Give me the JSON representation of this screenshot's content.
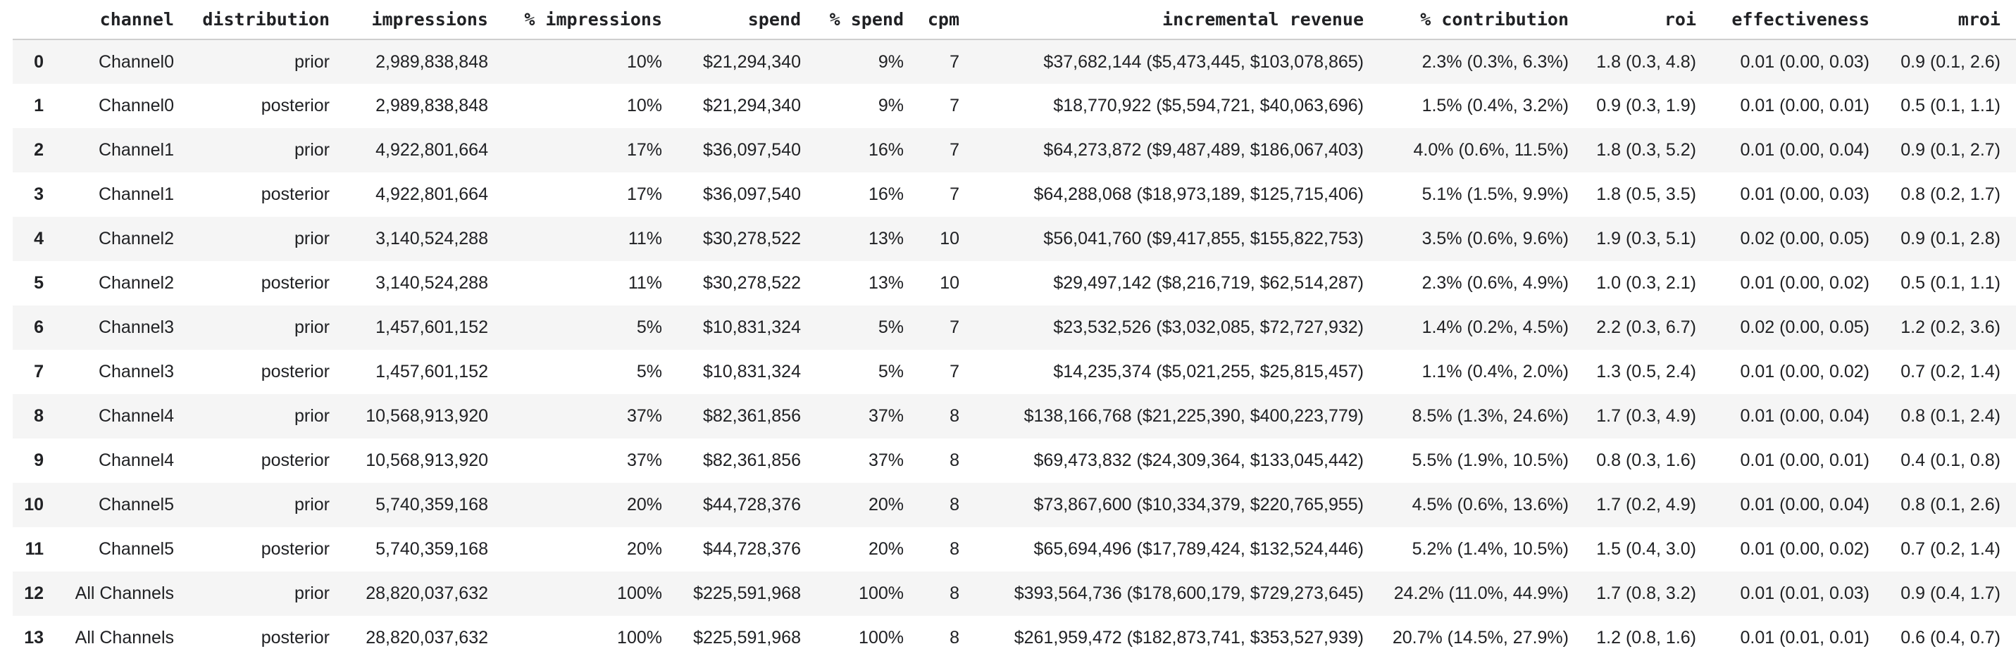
{
  "style": {
    "text_color": "#202124",
    "stripe_color": "#f5f5f5",
    "header_border_color": "#cfcfcf",
    "background_color": "#ffffff"
  },
  "table": {
    "columns": [
      "",
      "channel",
      "distribution",
      "impressions",
      "% impressions",
      "spend",
      "% spend",
      "cpm",
      "incremental revenue",
      "% contribution",
      "roi",
      "effectiveness",
      "mroi"
    ],
    "column_slugs": [
      "index",
      "channel",
      "distribution",
      "impressions",
      "pct-impressions",
      "spend",
      "pct-spend",
      "cpm",
      "incremental-revenue",
      "pct-contribution",
      "roi",
      "effectiveness",
      "mroi"
    ],
    "rows": [
      [
        "0",
        "Channel0",
        "prior",
        "2,989,838,848",
        "10%",
        "$21,294,340",
        "9%",
        "7",
        "$37,682,144 ($5,473,445, $103,078,865)",
        "2.3% (0.3%, 6.3%)",
        "1.8 (0.3, 4.8)",
        "0.01 (0.00, 0.03)",
        "0.9 (0.1, 2.6)"
      ],
      [
        "1",
        "Channel0",
        "posterior",
        "2,989,838,848",
        "10%",
        "$21,294,340",
        "9%",
        "7",
        "$18,770,922 ($5,594,721, $40,063,696)",
        "1.5% (0.4%, 3.2%)",
        "0.9 (0.3, 1.9)",
        "0.01 (0.00, 0.01)",
        "0.5 (0.1, 1.1)"
      ],
      [
        "2",
        "Channel1",
        "prior",
        "4,922,801,664",
        "17%",
        "$36,097,540",
        "16%",
        "7",
        "$64,273,872 ($9,487,489, $186,067,403)",
        "4.0% (0.6%, 11.5%)",
        "1.8 (0.3, 5.2)",
        "0.01 (0.00, 0.04)",
        "0.9 (0.1, 2.7)"
      ],
      [
        "3",
        "Channel1",
        "posterior",
        "4,922,801,664",
        "17%",
        "$36,097,540",
        "16%",
        "7",
        "$64,288,068 ($18,973,189, $125,715,406)",
        "5.1% (1.5%, 9.9%)",
        "1.8 (0.5, 3.5)",
        "0.01 (0.00, 0.03)",
        "0.8 (0.2, 1.7)"
      ],
      [
        "4",
        "Channel2",
        "prior",
        "3,140,524,288",
        "11%",
        "$30,278,522",
        "13%",
        "10",
        "$56,041,760 ($9,417,855, $155,822,753)",
        "3.5% (0.6%, 9.6%)",
        "1.9 (0.3, 5.1)",
        "0.02 (0.00, 0.05)",
        "0.9 (0.1, 2.8)"
      ],
      [
        "5",
        "Channel2",
        "posterior",
        "3,140,524,288",
        "11%",
        "$30,278,522",
        "13%",
        "10",
        "$29,497,142 ($8,216,719, $62,514,287)",
        "2.3% (0.6%, 4.9%)",
        "1.0 (0.3, 2.1)",
        "0.01 (0.00, 0.02)",
        "0.5 (0.1, 1.1)"
      ],
      [
        "6",
        "Channel3",
        "prior",
        "1,457,601,152",
        "5%",
        "$10,831,324",
        "5%",
        "7",
        "$23,532,526 ($3,032,085, $72,727,932)",
        "1.4% (0.2%, 4.5%)",
        "2.2 (0.3, 6.7)",
        "0.02 (0.00, 0.05)",
        "1.2 (0.2, 3.6)"
      ],
      [
        "7",
        "Channel3",
        "posterior",
        "1,457,601,152",
        "5%",
        "$10,831,324",
        "5%",
        "7",
        "$14,235,374 ($5,021,255, $25,815,457)",
        "1.1% (0.4%, 2.0%)",
        "1.3 (0.5, 2.4)",
        "0.01 (0.00, 0.02)",
        "0.7 (0.2, 1.4)"
      ],
      [
        "8",
        "Channel4",
        "prior",
        "10,568,913,920",
        "37%",
        "$82,361,856",
        "37%",
        "8",
        "$138,166,768 ($21,225,390, $400,223,779)",
        "8.5% (1.3%, 24.6%)",
        "1.7 (0.3, 4.9)",
        "0.01 (0.00, 0.04)",
        "0.8 (0.1, 2.4)"
      ],
      [
        "9",
        "Channel4",
        "posterior",
        "10,568,913,920",
        "37%",
        "$82,361,856",
        "37%",
        "8",
        "$69,473,832 ($24,309,364, $133,045,442)",
        "5.5% (1.9%, 10.5%)",
        "0.8 (0.3, 1.6)",
        "0.01 (0.00, 0.01)",
        "0.4 (0.1, 0.8)"
      ],
      [
        "10",
        "Channel5",
        "prior",
        "5,740,359,168",
        "20%",
        "$44,728,376",
        "20%",
        "8",
        "$73,867,600 ($10,334,379, $220,765,955)",
        "4.5% (0.6%, 13.6%)",
        "1.7 (0.2, 4.9)",
        "0.01 (0.00, 0.04)",
        "0.8 (0.1, 2.6)"
      ],
      [
        "11",
        "Channel5",
        "posterior",
        "5,740,359,168",
        "20%",
        "$44,728,376",
        "20%",
        "8",
        "$65,694,496 ($17,789,424, $132,524,446)",
        "5.2% (1.4%, 10.5%)",
        "1.5 (0.4, 3.0)",
        "0.01 (0.00, 0.02)",
        "0.7 (0.2, 1.4)"
      ],
      [
        "12",
        "All Channels",
        "prior",
        "28,820,037,632",
        "100%",
        "$225,591,968",
        "100%",
        "8",
        "$393,564,736 ($178,600,179, $729,273,645)",
        "24.2% (11.0%, 44.9%)",
        "1.7 (0.8, 3.2)",
        "0.01 (0.01, 0.03)",
        "0.9 (0.4, 1.7)"
      ],
      [
        "13",
        "All Channels",
        "posterior",
        "28,820,037,632",
        "100%",
        "$225,591,968",
        "100%",
        "8",
        "$261,959,472 ($182,873,741, $353,527,939)",
        "20.7% (14.5%, 27.9%)",
        "1.2 (0.8, 1.6)",
        "0.01 (0.01, 0.01)",
        "0.6 (0.4, 0.7)"
      ]
    ]
  }
}
